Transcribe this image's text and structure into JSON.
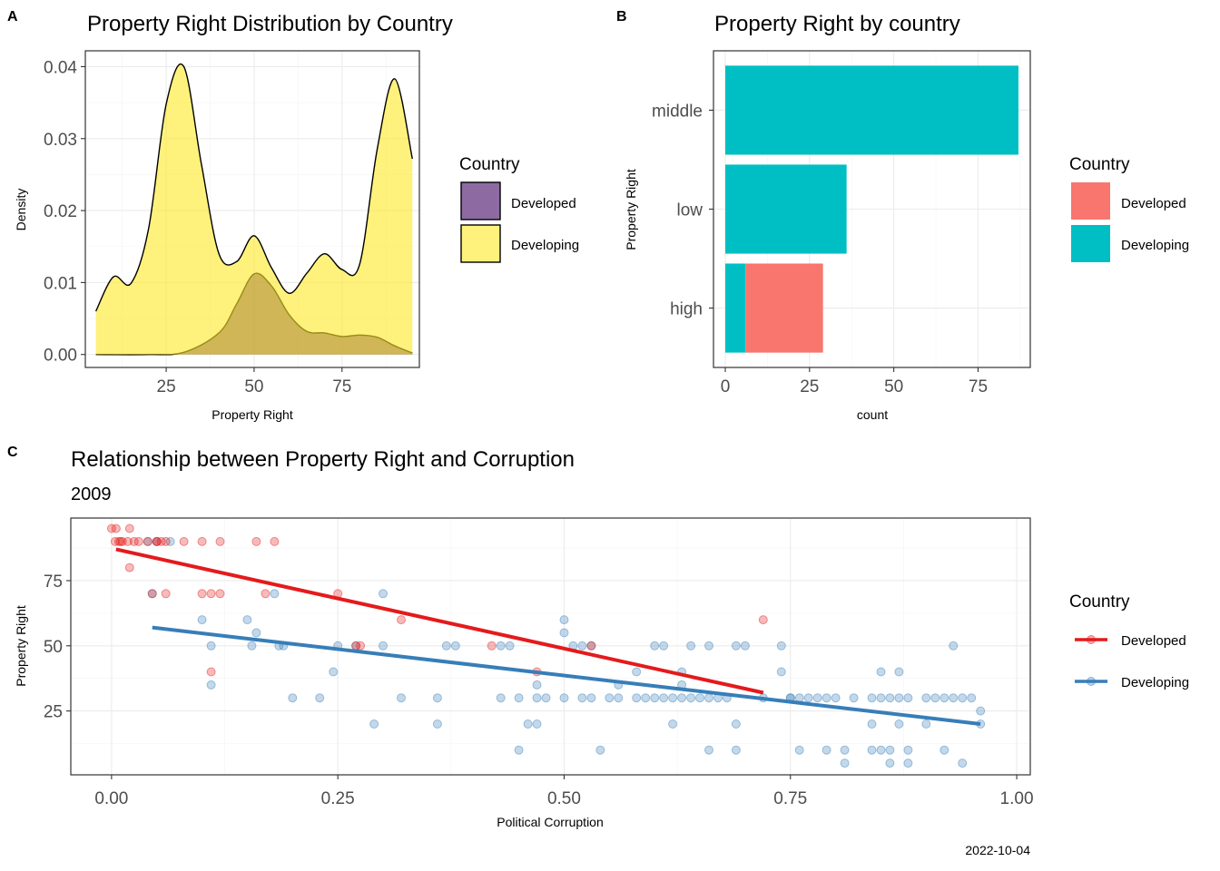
{
  "panel_tags": [
    "A",
    "B",
    "C"
  ],
  "caption": "2022-10-04",
  "colors": {
    "developed_fill_density": "#5c2c7a",
    "developing_fill_density": "#fde725",
    "developed_bar": "#f8766d",
    "developing_bar": "#00bfc4",
    "developed_line": "#e41a1c",
    "developing_line": "#377eb8"
  },
  "chart_data": [
    {
      "type": "area",
      "panel": "A",
      "title": "Property Right Distribution by Country",
      "xlabel": "Property Right",
      "ylabel": "Density",
      "xlim": [
        2,
        97
      ],
      "ylim": [
        -0.0018,
        0.0422
      ],
      "x_ticks": [
        25,
        50,
        75
      ],
      "y_ticks": [
        0.0,
        0.01,
        0.02,
        0.03,
        0.04
      ],
      "y_tick_labels": [
        "0.00",
        "0.01",
        "0.02",
        "0.03",
        "0.04"
      ],
      "legend_title": "Country",
      "legend_position": "right",
      "series": [
        {
          "name": "Developed",
          "x": [
            5,
            20,
            30,
            40,
            45,
            50,
            55,
            60,
            65,
            70,
            75,
            80,
            85,
            90,
            95
          ],
          "y": [
            0.0,
            0.0,
            0.0003,
            0.003,
            0.007,
            0.0112,
            0.0095,
            0.0055,
            0.0032,
            0.003,
            0.0025,
            0.0027,
            0.0024,
            0.0012,
            0.0002
          ]
        },
        {
          "name": "Developing",
          "x": [
            5,
            10,
            15,
            20,
            25,
            30,
            35,
            40,
            45,
            50,
            55,
            60,
            65,
            70,
            75,
            80,
            85,
            90,
            95
          ],
          "y": [
            0.006,
            0.0108,
            0.0099,
            0.0175,
            0.0348,
            0.04,
            0.0265,
            0.014,
            0.0129,
            0.0165,
            0.012,
            0.0085,
            0.0113,
            0.014,
            0.0118,
            0.0125,
            0.0285,
            0.0383,
            0.0272
          ]
        }
      ]
    },
    {
      "type": "bar",
      "panel": "B",
      "orientation": "horizontal",
      "stacked": true,
      "title": "Property Right by country",
      "xlabel": "count",
      "ylabel": "Property Right",
      "categories": [
        "high",
        "low",
        "middle"
      ],
      "xlim": [
        -3.5,
        90.5
      ],
      "x_ticks": [
        0,
        25,
        50,
        75
      ],
      "legend_title": "Country",
      "legend_position": "right",
      "series": [
        {
          "name": "Developing",
          "values": [
            6,
            36,
            87
          ]
        },
        {
          "name": "Developed",
          "values": [
            23,
            0,
            0
          ]
        }
      ]
    },
    {
      "type": "scatter",
      "panel": "C",
      "title": "Relationship between Property Right and Corruption",
      "subtitle": "2009",
      "xlabel": "Political Corruption",
      "ylabel": "Property Right",
      "xlim": [
        -0.045,
        1.015
      ],
      "ylim": [
        0.5,
        99
      ],
      "x_ticks": [
        0.0,
        0.25,
        0.5,
        0.75,
        1.0
      ],
      "x_tick_labels": [
        "0.00",
        "0.25",
        "0.50",
        "0.75",
        "1.00"
      ],
      "y_ticks": [
        25,
        50,
        75
      ],
      "legend_title": "Country",
      "legend_position": "right",
      "series": [
        {
          "name": "Developed",
          "x": [
            0.0,
            0.005,
            0.01,
            0.02,
            0.004,
            0.008,
            0.012,
            0.018,
            0.025,
            0.03,
            0.04,
            0.05,
            0.055,
            0.06,
            0.08,
            0.1,
            0.12,
            0.16,
            0.18,
            0.02,
            0.045,
            0.06,
            0.1,
            0.11,
            0.12,
            0.17,
            0.25,
            0.32,
            0.27,
            0.275,
            0.42,
            0.53,
            0.47,
            0.72,
            0.11,
            0.05
          ],
          "y": [
            95,
            95,
            90,
            95,
            90,
            90,
            90,
            90,
            90,
            90,
            90,
            90,
            90,
            90,
            90,
            90,
            90,
            90,
            90,
            80,
            70,
            70,
            70,
            70,
            70,
            70,
            70,
            60,
            50,
            50,
            50,
            50,
            40,
            60,
            40,
            90
          ]
        },
        {
          "name": "Developing",
          "x": [
            0.04,
            0.05,
            0.065,
            0.045,
            0.18,
            0.1,
            0.15,
            0.16,
            0.19,
            0.11,
            0.155,
            0.185,
            0.25,
            0.27,
            0.3,
            0.37,
            0.38,
            0.43,
            0.44,
            0.5,
            0.51,
            0.52,
            0.53,
            0.6,
            0.61,
            0.64,
            0.66,
            0.69,
            0.7,
            0.74,
            0.75,
            0.76,
            0.11,
            0.245,
            0.2,
            0.23,
            0.32,
            0.36,
            0.43,
            0.45,
            0.48,
            0.47,
            0.5,
            0.52,
            0.53,
            0.55,
            0.56,
            0.58,
            0.59,
            0.6,
            0.61,
            0.62,
            0.63,
            0.64,
            0.65,
            0.66,
            0.67,
            0.68,
            0.72,
            0.75,
            0.77,
            0.78,
            0.79,
            0.8,
            0.82,
            0.84,
            0.85,
            0.86,
            0.87,
            0.88,
            0.9,
            0.91,
            0.92,
            0.93,
            0.94,
            0.95,
            0.96,
            0.29,
            0.36,
            0.46,
            0.47,
            0.62,
            0.69,
            0.84,
            0.87,
            0.9,
            0.96,
            0.45,
            0.54,
            0.66,
            0.69,
            0.76,
            0.79,
            0.81,
            0.84,
            0.85,
            0.86,
            0.88,
            0.92,
            0.81,
            0.86,
            0.88,
            0.94,
            0.3,
            0.5,
            0.58,
            0.63,
            0.74,
            0.85,
            0.87,
            0.93,
            0.63,
            0.56,
            0.47
          ],
          "y": [
            90,
            90,
            90,
            70,
            70,
            60,
            60,
            55,
            50,
            50,
            50,
            50,
            50,
            50,
            50,
            50,
            50,
            50,
            50,
            55,
            50,
            50,
            50,
            50,
            50,
            50,
            50,
            50,
            50,
            50,
            30,
            30,
            35,
            40,
            30,
            30,
            30,
            30,
            30,
            30,
            30,
            30,
            30,
            30,
            30,
            30,
            30,
            30,
            30,
            30,
            30,
            30,
            30,
            30,
            30,
            30,
            30,
            30,
            30,
            30,
            30,
            30,
            30,
            30,
            30,
            30,
            30,
            30,
            30,
            30,
            30,
            30,
            30,
            30,
            30,
            30,
            25,
            20,
            20,
            20,
            20,
            20,
            20,
            20,
            20,
            20,
            20,
            10,
            10,
            10,
            10,
            10,
            10,
            10,
            10,
            10,
            10,
            10,
            10,
            5,
            5,
            5,
            5,
            70,
            60,
            40,
            40,
            40,
            40,
            40,
            50,
            35,
            35,
            35
          ]
        }
      ],
      "fit_lines": [
        {
          "name": "Developed",
          "x": [
            0.005,
            0.72
          ],
          "y": [
            87,
            32
          ]
        },
        {
          "name": "Developing",
          "x": [
            0.045,
            0.96
          ],
          "y": [
            57,
            20
          ]
        }
      ]
    }
  ]
}
